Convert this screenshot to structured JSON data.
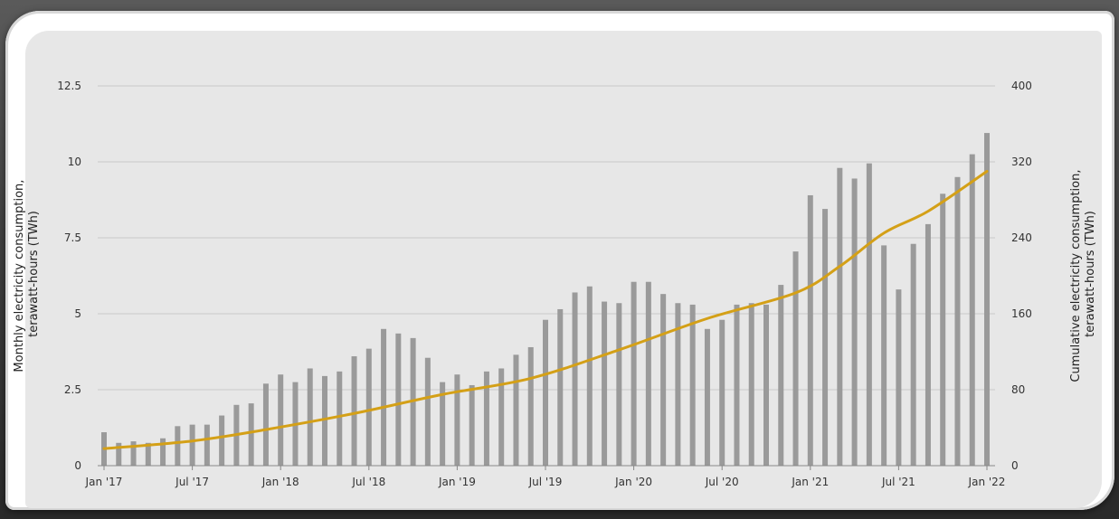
{
  "chart_data": {
    "type": "bar",
    "x_tick_labels": [
      "Jan '17",
      "Jul '17",
      "Jan '18",
      "Jul '18",
      "Jan '19",
      "Jul '19",
      "Jan '20",
      "Jul '20",
      "Jan '21",
      "Jul '21",
      "Jan '22"
    ],
    "y_left": {
      "label_lines": [
        "Monthly electricity consumption,",
        "terawatt-hours (TWh)"
      ],
      "ticks": [
        0,
        2.5,
        5,
        7.5,
        10,
        12.5
      ],
      "tick_labels": [
        "0",
        "2.5",
        "5",
        "7.5",
        "10",
        "12.5"
      ],
      "range": [
        0,
        12.5
      ]
    },
    "y_right": {
      "label_lines": [
        "Cumulative electricity consumption,",
        "terawatt-hours (TWh)"
      ],
      "ticks": [
        0,
        80,
        160,
        240,
        320,
        400
      ],
      "tick_labels": [
        "0",
        "80",
        "160",
        "240",
        "320",
        "400"
      ],
      "range": [
        0,
        400
      ]
    },
    "grid": true,
    "colors": {
      "bars": "#9a9a9a",
      "line": "#d4a017",
      "grid": "#c8c8c8"
    },
    "series": [
      {
        "type": "bar",
        "axis": "left",
        "values": [
          1.1,
          0.75,
          0.8,
          0.75,
          0.9,
          1.3,
          1.35,
          1.35,
          1.65,
          2.0,
          2.05,
          2.7,
          3.0,
          2.75,
          3.2,
          2.95,
          3.1,
          3.6,
          3.85,
          4.5,
          4.35,
          4.2,
          3.55,
          2.75,
          3.0,
          2.65,
          3.1,
          3.2,
          3.65,
          3.9,
          4.8,
          5.15,
          5.7,
          5.9,
          5.4,
          5.35,
          6.05,
          6.05,
          5.65,
          5.35,
          5.3,
          4.5,
          4.8,
          5.3,
          5.35,
          5.3,
          5.95,
          7.05,
          8.9,
          8.45,
          9.8,
          9.45,
          9.95,
          7.25,
          5.8,
          7.3,
          7.95,
          8.95,
          9.5,
          10.25,
          10.95
        ]
      },
      {
        "type": "line",
        "axis": "right",
        "x_index": [
          0,
          6,
          11,
          17,
          23,
          29,
          35,
          41,
          47,
          50,
          53,
          56,
          60
        ],
        "values": [
          18,
          26,
          38,
          55,
          75,
          92,
          122,
          155,
          182,
          210,
          245,
          268,
          310
        ]
      }
    ]
  }
}
